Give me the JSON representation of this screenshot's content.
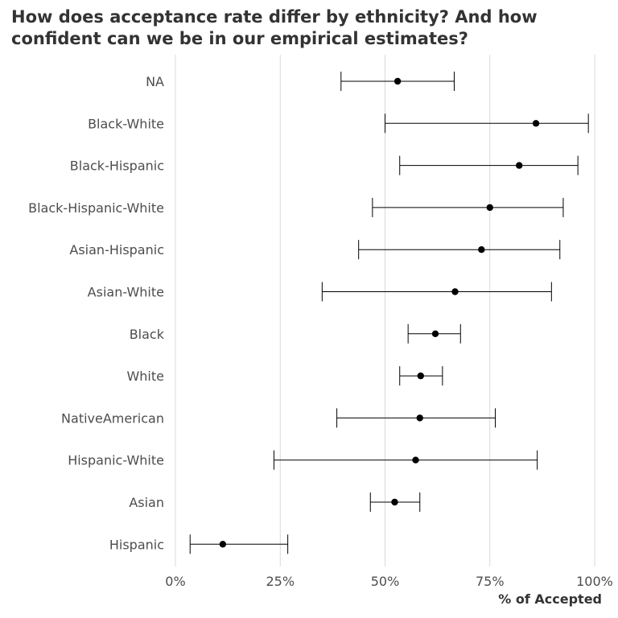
{
  "chart_data": {
    "type": "scatter",
    "title": "How does acceptance rate differ by ethnicity? And how confident can we be in our empirical estimates?",
    "xlabel": "% of Accepted",
    "ylabel": "",
    "xlim": [
      0,
      1
    ],
    "x_ticks": [
      0,
      0.25,
      0.5,
      0.75,
      1
    ],
    "x_tick_labels": [
      "0%",
      "25%",
      "50%",
      "75%",
      "100%"
    ],
    "grid": "vertical major gridlines",
    "legend": "none",
    "point_color": "#000000",
    "grid_color": "#d9d9d9",
    "categories": [
      "NA",
      "Black-White",
      "Black-Hispanic",
      "Black-Hispanic-White",
      "Asian-Hispanic",
      "Asian-White",
      "Black",
      "White",
      "NativeAmerican",
      "Hispanic-White",
      "Asian",
      "Hispanic"
    ],
    "estimates": [
      0.53,
      0.86,
      0.82,
      0.75,
      0.73,
      0.667,
      0.62,
      0.585,
      0.583,
      0.573,
      0.523,
      0.113
    ],
    "lower": [
      0.395,
      0.5,
      0.535,
      0.47,
      0.437,
      0.35,
      0.555,
      0.535,
      0.385,
      0.235,
      0.465,
      0.035
    ],
    "upper": [
      0.665,
      0.985,
      0.96,
      0.925,
      0.917,
      0.897,
      0.68,
      0.637,
      0.763,
      0.863,
      0.583,
      0.268
    ]
  }
}
